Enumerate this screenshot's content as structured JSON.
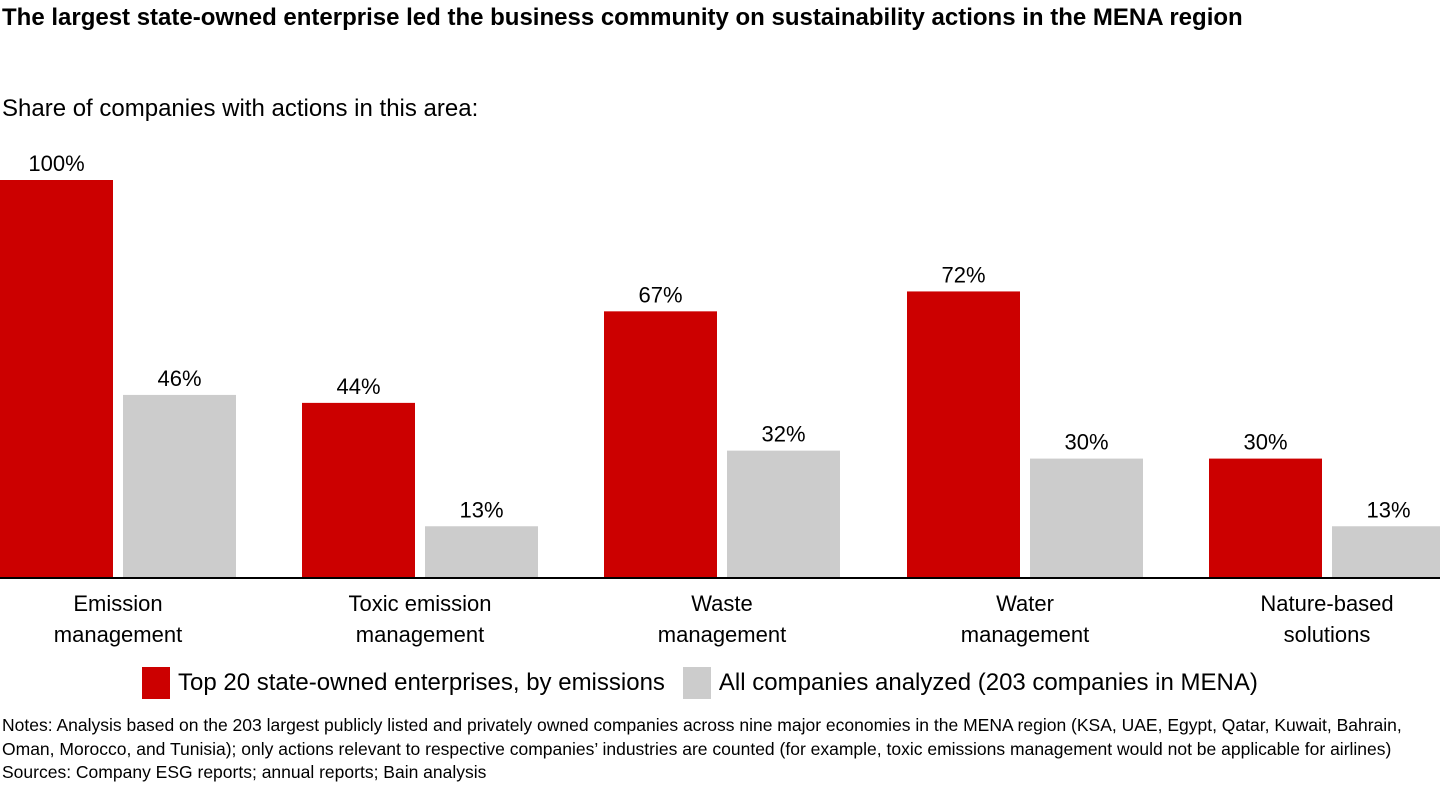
{
  "header": {
    "title": "The largest state-owned enterprise led the business community on sustainability actions in the MENA region",
    "subtitle": "Share of companies with actions in this area:"
  },
  "chart_data": {
    "type": "bar",
    "categories": [
      [
        "Emission",
        "management"
      ],
      [
        "Toxic emission",
        "management"
      ],
      [
        "Waste",
        "management"
      ],
      [
        "Water",
        "management"
      ],
      [
        "Nature-based",
        "solutions"
      ]
    ],
    "series": [
      {
        "name": "Top 20 state-owned enterprises, by emissions",
        "color": "#cc0000",
        "values": [
          100,
          44,
          67,
          72,
          30
        ],
        "labels": [
          "100%",
          "44%",
          "67%",
          "72%",
          "30%"
        ]
      },
      {
        "name": "All companies analyzed (203 companies in MENA)",
        "color": "#cccccc",
        "values": [
          46,
          13,
          32,
          30,
          13
        ],
        "labels": [
          "46%",
          "13%",
          "32%",
          "30%",
          "13%"
        ]
      }
    ],
    "ylim": [
      0,
      100
    ],
    "grid": false,
    "legend_position": "bottom"
  },
  "legend": {
    "series_1": "Top 20 state-owned enterprises, by emissions",
    "series_2": "All companies analyzed (203 companies in MENA)"
  },
  "footer": {
    "notes": "Notes: Analysis based on the 203 largest publicly listed and privately owned companies across nine major economies in the MENA region (KSA, UAE, Egypt, Qatar, Kuwait, Bahrain, Oman, Morocco, and Tunisia); only actions relevant to respective companies’ industries are counted (for example, toxic emissions management would not be applicable for airlines)",
    "sources": "Sources: Company ESG reports; annual reports; Bain analysis"
  }
}
